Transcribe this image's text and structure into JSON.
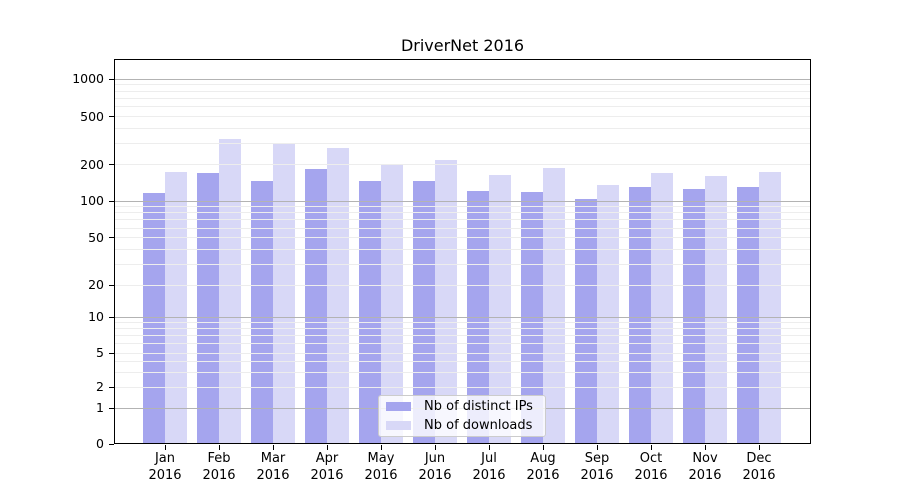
{
  "chart_data": {
    "type": "bar",
    "title": "DriverNet 2016",
    "categories": [
      "Jan",
      "Feb",
      "Mar",
      "Apr",
      "May",
      "Jun",
      "Jul",
      "Aug",
      "Sep",
      "Oct",
      "Nov",
      "Dec"
    ],
    "category_year": "2016",
    "series": [
      {
        "name": "Nb of distinct IPs",
        "color": "#a5a5ee",
        "values": [
          117,
          170,
          147,
          183,
          147,
          147,
          122,
          118,
          103,
          130,
          125,
          131
        ]
      },
      {
        "name": "Nb of downloads",
        "color": "#d8d8f7",
        "values": [
          172,
          324,
          303,
          273,
          202,
          218,
          164,
          187,
          135,
          171,
          161,
          174
        ]
      }
    ],
    "yscale": "symlog",
    "y_ticks": [
      0,
      1,
      2,
      5,
      10,
      20,
      50,
      100,
      200,
      500,
      1000
    ],
    "ylim": [
      0,
      1200
    ],
    "xlabel": "",
    "ylabel": "",
    "grid": true,
    "legend_position": "lower center",
    "colors": {
      "major_grid": "#b3b3b3",
      "minor_grid": "#ededed",
      "axis": "#000000"
    }
  }
}
